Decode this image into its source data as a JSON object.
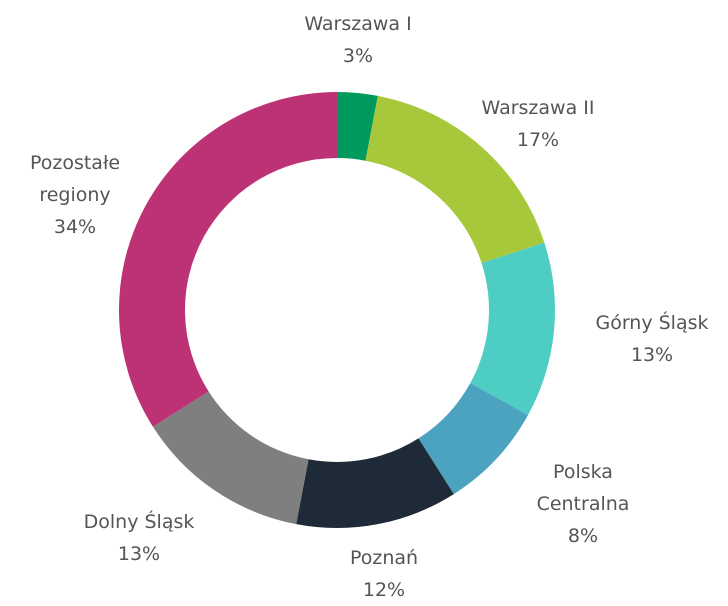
{
  "chart_data": {
    "type": "donut",
    "categories": [
      "Warszawa I",
      "Warszawa II",
      "Górny Śląsk",
      "Polska Centralna",
      "Poznań",
      "Dolny Śląsk",
      "Pozostałe regiony"
    ],
    "values": [
      3,
      17,
      13,
      8,
      12,
      13,
      34
    ],
    "value_labels": [
      "3%",
      "17%",
      "13%",
      "8%",
      "12%",
      "13%",
      "34%"
    ],
    "colors": [
      "#009a5c",
      "#a8c83c",
      "#4ecdc4",
      "#4ba3bf",
      "#1e2a38",
      "#7f7f7f",
      "#bd3275"
    ]
  }
}
